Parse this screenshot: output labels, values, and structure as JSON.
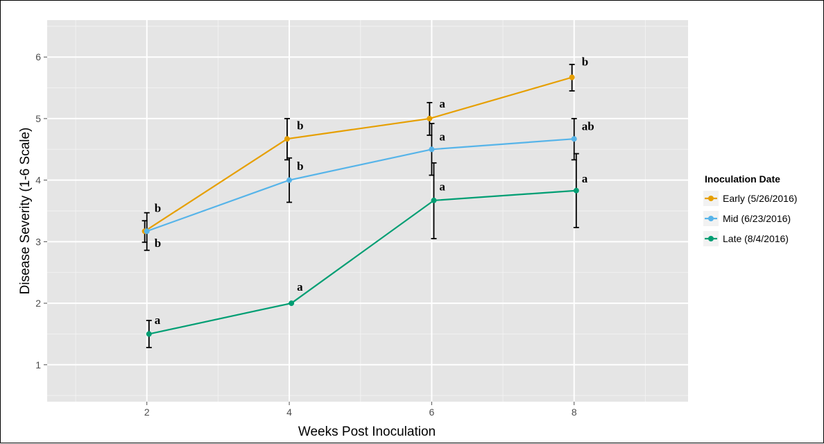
{
  "chart_data": {
    "type": "line",
    "xlabel": "Weeks Post Inoculation",
    "ylabel": "Disease Severity (1-6 Scale)",
    "xlim": [
      0.6,
      9.6
    ],
    "ylim": [
      0.4,
      6.6
    ],
    "xticks": [
      2,
      4,
      6,
      8
    ],
    "yticks": [
      1,
      2,
      3,
      4,
      5,
      6
    ],
    "grid": true,
    "legend_position": "right",
    "legend_title": "Inoculation Date",
    "series": [
      {
        "name": "Early (5/26/2016)",
        "color": "#E69F00",
        "x": [
          2,
          4,
          6,
          8
        ],
        "y": [
          3.17,
          4.67,
          5.0,
          5.67
        ],
        "err_low": [
          2.99,
          4.33,
          4.73,
          5.45
        ],
        "err_high": [
          3.34,
          5.0,
          5.26,
          5.88
        ],
        "labels": [
          "",
          "b",
          "a",
          "b"
        ]
      },
      {
        "name": "Mid (6/23/2016)",
        "color": "#56B4E9",
        "x": [
          2,
          4,
          6,
          8
        ],
        "y": [
          3.17,
          4.0,
          4.5,
          4.67
        ],
        "err_low": [
          2.86,
          3.64,
          4.08,
          4.33
        ],
        "err_high": [
          3.47,
          4.36,
          4.92,
          5.0
        ],
        "labels": [
          "b",
          "b",
          "a",
          "ab"
        ]
      },
      {
        "name": "Late (8/4/2016)",
        "color": "#009E73",
        "x": [
          2,
          4,
          6,
          8
        ],
        "y": [
          1.5,
          2.0,
          3.67,
          3.83
        ],
        "err_low": [
          1.28,
          2.0,
          3.05,
          3.23
        ],
        "err_high": [
          1.72,
          2.0,
          4.28,
          4.43
        ],
        "labels": [
          "a",
          "a",
          "a",
          "a"
        ]
      }
    ],
    "annotations": [
      {
        "x": 2,
        "y": 3.55,
        "text": "b"
      },
      {
        "x": 2,
        "y": 2.98,
        "text": "b"
      },
      {
        "x": 2,
        "y": 1.73,
        "text": "a"
      },
      {
        "x": 4,
        "y": 4.89,
        "text": "b"
      },
      {
        "x": 4,
        "y": 4.23,
        "text": "b"
      },
      {
        "x": 4,
        "y": 2.27,
        "text": "a"
      },
      {
        "x": 6,
        "y": 5.25,
        "text": "a"
      },
      {
        "x": 6,
        "y": 4.71,
        "text": "a"
      },
      {
        "x": 6,
        "y": 3.9,
        "text": "a"
      },
      {
        "x": 8,
        "y": 5.93,
        "text": "b"
      },
      {
        "x": 8,
        "y": 4.88,
        "text": "ab"
      },
      {
        "x": 8,
        "y": 4.03,
        "text": "a"
      }
    ]
  }
}
